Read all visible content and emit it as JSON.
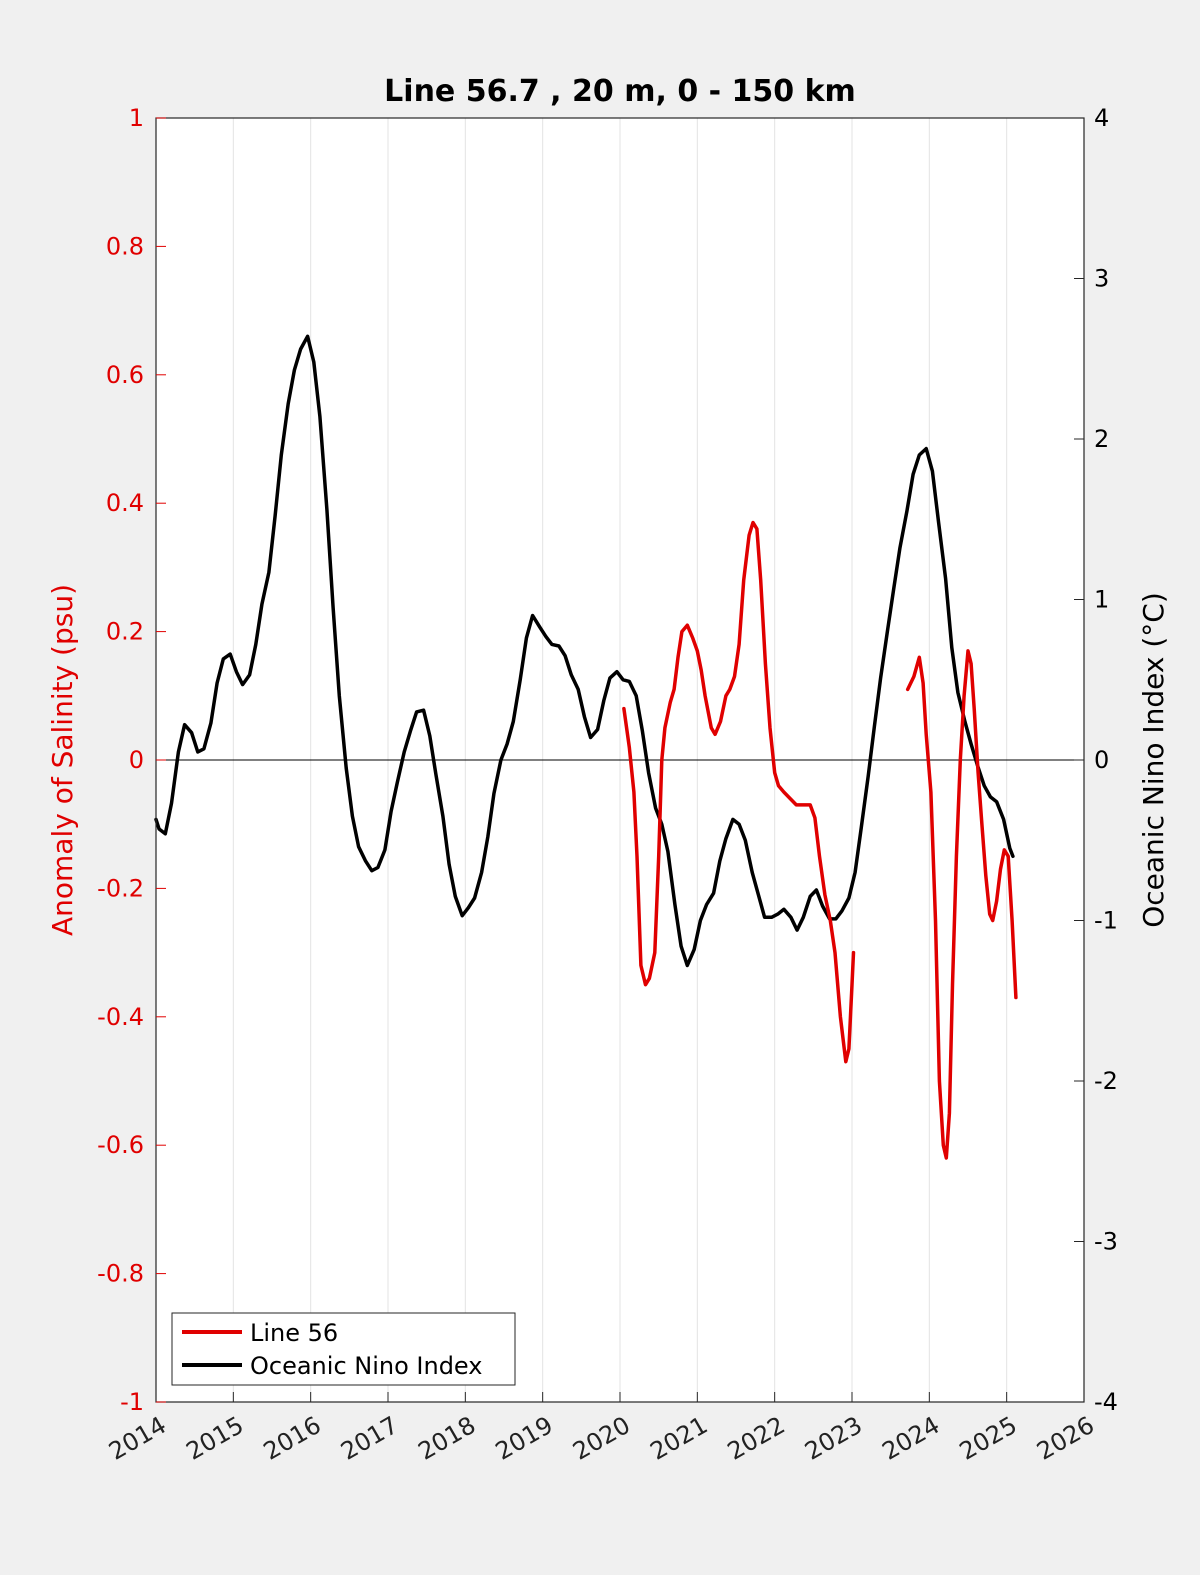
{
  "chart_data": {
    "type": "line",
    "title": "Line 56.7 , 20 m, 0 - 150 km",
    "xlim": [
      2014,
      2026
    ],
    "x_ticks": [
      "2014",
      "2015",
      "2016",
      "2017",
      "2018",
      "2019",
      "2020",
      "2021",
      "2022",
      "2023",
      "2024",
      "2025",
      "2026"
    ],
    "y_left": {
      "label": "Anomaly of Salinity (psu)",
      "ylim": [
        -1,
        1
      ],
      "ticks": [
        "-1",
        "-0.8",
        "-0.6",
        "-0.4",
        "-0.2",
        "0",
        "0.2",
        "0.4",
        "0.6",
        "0.8",
        "1"
      ],
      "color": "#e00000"
    },
    "y_right": {
      "label": "Oceanic Nino Index (°C)",
      "ylim": [
        -4,
        4
      ],
      "ticks": [
        "-4",
        "-3",
        "-2",
        "-1",
        "0",
        "1",
        "2",
        "3",
        "4"
      ],
      "color": "#000000"
    },
    "grid": "vertical",
    "legend_position": "bottom-left",
    "series": [
      {
        "name": "Line 56",
        "axis": "left",
        "color": "#e00000",
        "segments": [
          [
            [
              2020.05,
              0.08
            ],
            [
              2020.12,
              0.02
            ],
            [
              2020.18,
              -0.05
            ],
            [
              2020.22,
              -0.15
            ],
            [
              2020.27,
              -0.32
            ],
            [
              2020.33,
              -0.35
            ],
            [
              2020.38,
              -0.34
            ],
            [
              2020.45,
              -0.3
            ],
            [
              2020.5,
              -0.15
            ],
            [
              2020.54,
              0.0
            ],
            [
              2020.58,
              0.05
            ],
            [
              2020.65,
              0.09
            ],
            [
              2020.7,
              0.11
            ],
            [
              2020.75,
              0.16
            ],
            [
              2020.8,
              0.2
            ],
            [
              2020.87,
              0.21
            ],
            [
              2020.94,
              0.19
            ],
            [
              2021.0,
              0.17
            ],
            [
              2021.05,
              0.14
            ],
            [
              2021.1,
              0.1
            ],
            [
              2021.18,
              0.05
            ],
            [
              2021.23,
              0.04
            ],
            [
              2021.3,
              0.06
            ],
            [
              2021.37,
              0.1
            ],
            [
              2021.42,
              0.11
            ],
            [
              2021.48,
              0.13
            ],
            [
              2021.54,
              0.18
            ],
            [
              2021.6,
              0.28
            ],
            [
              2021.67,
              0.35
            ],
            [
              2021.72,
              0.37
            ],
            [
              2021.77,
              0.36
            ],
            [
              2021.82,
              0.28
            ],
            [
              2021.88,
              0.15
            ],
            [
              2021.94,
              0.05
            ],
            [
              2022.0,
              -0.02
            ],
            [
              2022.05,
              -0.04
            ],
            [
              2022.12,
              -0.05
            ],
            [
              2022.2,
              -0.06
            ],
            [
              2022.28,
              -0.07
            ],
            [
              2022.4,
              -0.07
            ],
            [
              2022.46,
              -0.07
            ],
            [
              2022.52,
              -0.09
            ],
            [
              2022.58,
              -0.15
            ],
            [
              2022.65,
              -0.21
            ],
            [
              2022.72,
              -0.25
            ],
            [
              2022.78,
              -0.3
            ],
            [
              2022.85,
              -0.4
            ],
            [
              2022.92,
              -0.47
            ],
            [
              2022.96,
              -0.45
            ],
            [
              2023.0,
              -0.35
            ],
            [
              2023.02,
              -0.3
            ]
          ],
          [
            [
              2023.72,
              0.11
            ],
            [
              2023.8,
              0.13
            ],
            [
              2023.87,
              0.16
            ],
            [
              2023.92,
              0.12
            ],
            [
              2023.96,
              0.04
            ],
            [
              2024.02,
              -0.05
            ],
            [
              2024.08,
              -0.25
            ],
            [
              2024.13,
              -0.5
            ],
            [
              2024.18,
              -0.6
            ],
            [
              2024.22,
              -0.62
            ],
            [
              2024.26,
              -0.55
            ],
            [
              2024.3,
              -0.35
            ],
            [
              2024.35,
              -0.15
            ],
            [
              2024.4,
              0.0
            ],
            [
              2024.45,
              0.1
            ],
            [
              2024.5,
              0.17
            ],
            [
              2024.54,
              0.15
            ],
            [
              2024.58,
              0.08
            ],
            [
              2024.63,
              -0.02
            ],
            [
              2024.68,
              -0.1
            ],
            [
              2024.73,
              -0.18
            ],
            [
              2024.78,
              -0.24
            ],
            [
              2024.82,
              -0.25
            ],
            [
              2024.87,
              -0.22
            ],
            [
              2024.92,
              -0.17
            ],
            [
              2024.97,
              -0.14
            ],
            [
              2025.02,
              -0.15
            ],
            [
              2025.07,
              -0.25
            ],
            [
              2025.12,
              -0.37
            ]
          ]
        ]
      },
      {
        "name": "Oceanic Nino Index",
        "axis": "right",
        "color": "#000000",
        "segments": [
          [
            [
              2014.0,
              -0.37
            ],
            [
              2014.04,
              -0.43
            ],
            [
              2014.12,
              -0.46
            ],
            [
              2014.2,
              -0.27
            ],
            [
              2014.29,
              0.05
            ],
            [
              2014.37,
              0.22
            ],
            [
              2014.46,
              0.17
            ],
            [
              2014.54,
              0.05
            ],
            [
              2014.62,
              0.07
            ],
            [
              2014.71,
              0.23
            ],
            [
              2014.79,
              0.48
            ],
            [
              2014.87,
              0.63
            ],
            [
              2014.96,
              0.66
            ],
            [
              2015.04,
              0.55
            ],
            [
              2015.12,
              0.47
            ],
            [
              2015.21,
              0.53
            ],
            [
              2015.29,
              0.72
            ],
            [
              2015.37,
              0.97
            ],
            [
              2015.46,
              1.17
            ],
            [
              2015.54,
              1.52
            ],
            [
              2015.62,
              1.9
            ],
            [
              2015.71,
              2.22
            ],
            [
              2015.79,
              2.43
            ],
            [
              2015.87,
              2.56
            ],
            [
              2015.96,
              2.64
            ],
            [
              2016.04,
              2.48
            ],
            [
              2016.12,
              2.14
            ],
            [
              2016.21,
              1.56
            ],
            [
              2016.29,
              0.95
            ],
            [
              2016.37,
              0.4
            ],
            [
              2016.46,
              -0.05
            ],
            [
              2016.54,
              -0.35
            ],
            [
              2016.62,
              -0.54
            ],
            [
              2016.71,
              -0.63
            ],
            [
              2016.79,
              -0.69
            ],
            [
              2016.87,
              -0.67
            ],
            [
              2016.96,
              -0.56
            ],
            [
              2017.04,
              -0.32
            ],
            [
              2017.12,
              -0.14
            ],
            [
              2017.21,
              0.05
            ],
            [
              2017.29,
              0.18
            ],
            [
              2017.37,
              0.3
            ],
            [
              2017.46,
              0.31
            ],
            [
              2017.54,
              0.15
            ],
            [
              2017.62,
              -0.09
            ],
            [
              2017.71,
              -0.35
            ],
            [
              2017.79,
              -0.65
            ],
            [
              2017.87,
              -0.85
            ],
            [
              2017.96,
              -0.97
            ],
            [
              2018.04,
              -0.92
            ],
            [
              2018.12,
              -0.86
            ],
            [
              2018.21,
              -0.7
            ],
            [
              2018.29,
              -0.48
            ],
            [
              2018.37,
              -0.21
            ],
            [
              2018.46,
              0.0
            ],
            [
              2018.54,
              0.1
            ],
            [
              2018.62,
              0.24
            ],
            [
              2018.71,
              0.5
            ],
            [
              2018.79,
              0.76
            ],
            [
              2018.87,
              0.9
            ],
            [
              2018.96,
              0.83
            ],
            [
              2019.04,
              0.77
            ],
            [
              2019.12,
              0.72
            ],
            [
              2019.21,
              0.71
            ],
            [
              2019.29,
              0.65
            ],
            [
              2019.37,
              0.53
            ],
            [
              2019.46,
              0.44
            ],
            [
              2019.54,
              0.27
            ],
            [
              2019.62,
              0.14
            ],
            [
              2019.71,
              0.19
            ],
            [
              2019.79,
              0.37
            ],
            [
              2019.87,
              0.51
            ],
            [
              2019.96,
              0.55
            ],
            [
              2020.04,
              0.5
            ],
            [
              2020.12,
              0.49
            ],
            [
              2020.21,
              0.4
            ],
            [
              2020.29,
              0.18
            ],
            [
              2020.37,
              -0.08
            ],
            [
              2020.46,
              -0.3
            ],
            [
              2020.54,
              -0.4
            ],
            [
              2020.62,
              -0.57
            ],
            [
              2020.71,
              -0.9
            ],
            [
              2020.79,
              -1.16
            ],
            [
              2020.87,
              -1.28
            ],
            [
              2020.96,
              -1.18
            ],
            [
              2021.04,
              -1.0
            ],
            [
              2021.12,
              -0.9
            ],
            [
              2021.21,
              -0.83
            ],
            [
              2021.29,
              -0.63
            ],
            [
              2021.37,
              -0.49
            ],
            [
              2021.46,
              -0.37
            ],
            [
              2021.54,
              -0.4
            ],
            [
              2021.62,
              -0.5
            ],
            [
              2021.71,
              -0.7
            ],
            [
              2021.79,
              -0.84
            ],
            [
              2021.87,
              -0.98
            ],
            [
              2021.96,
              -0.98
            ],
            [
              2022.04,
              -0.96
            ],
            [
              2022.12,
              -0.93
            ],
            [
              2022.21,
              -0.98
            ],
            [
              2022.29,
              -1.06
            ],
            [
              2022.37,
              -0.98
            ],
            [
              2022.46,
              -0.85
            ],
            [
              2022.54,
              -0.81
            ],
            [
              2022.62,
              -0.91
            ],
            [
              2022.71,
              -0.99
            ],
            [
              2022.79,
              -0.99
            ],
            [
              2022.87,
              -0.94
            ],
            [
              2022.96,
              -0.86
            ],
            [
              2023.04,
              -0.7
            ],
            [
              2023.12,
              -0.42
            ],
            [
              2023.21,
              -0.1
            ],
            [
              2023.29,
              0.21
            ],
            [
              2023.37,
              0.51
            ],
            [
              2023.46,
              0.81
            ],
            [
              2023.54,
              1.07
            ],
            [
              2023.62,
              1.32
            ],
            [
              2023.71,
              1.55
            ],
            [
              2023.79,
              1.78
            ],
            [
              2023.87,
              1.9
            ],
            [
              2023.96,
              1.94
            ],
            [
              2024.04,
              1.8
            ],
            [
              2024.12,
              1.48
            ],
            [
              2024.21,
              1.13
            ],
            [
              2024.29,
              0.7
            ],
            [
              2024.37,
              0.42
            ],
            [
              2024.46,
              0.24
            ],
            [
              2024.54,
              0.1
            ],
            [
              2024.62,
              -0.03
            ],
            [
              2024.71,
              -0.16
            ],
            [
              2024.79,
              -0.23
            ],
            [
              2024.87,
              -0.26
            ],
            [
              2024.96,
              -0.37
            ],
            [
              2025.04,
              -0.55
            ],
            [
              2025.08,
              -0.6
            ]
          ]
        ]
      }
    ]
  }
}
